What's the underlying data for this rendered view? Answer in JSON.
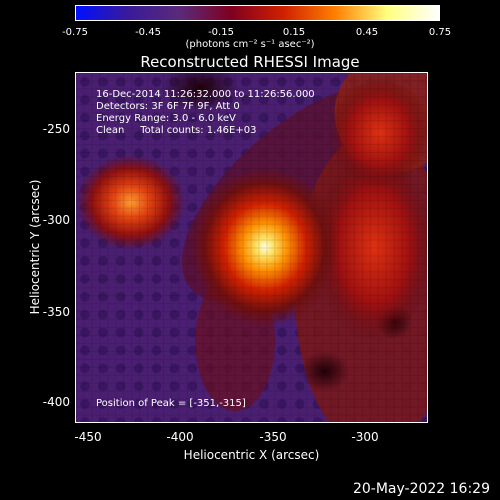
{
  "colorbar": {
    "ticks": [
      "-0.75",
      "-0.45",
      "-0.15",
      "0.15",
      "0.45",
      "0.75"
    ],
    "units": "(photons cm⁻² s⁻¹ asec⁻²)",
    "gradient": [
      "#0010ff",
      "#3a1a9a",
      "#5a2a7a",
      "#800020",
      "#d02000",
      "#ff8000",
      "#ffff80",
      "#ffffff"
    ]
  },
  "title": "Reconstructed RHESSI Image",
  "info": {
    "line1": "16-Dec-2014 11:26:32.000 to 11:26:56.000",
    "line2": "Detectors: 3F 6F 7F 9F, Att 0",
    "line3": "Energy Range: 3.0 - 6.0 keV",
    "line4": "Clean     Total counts: 1.46E+03",
    "peak": "Position of Peak = [-351,-315]"
  },
  "axes": {
    "xlabel": "Heliocentric X (arcsec)",
    "ylabel": "Heliocentric Y (arcsec)",
    "xticks": [
      "-450",
      "-400",
      "-350",
      "-300"
    ],
    "yticks": [
      "-250",
      "-300",
      "-350",
      "-400"
    ]
  },
  "footer": {
    "date": "20-May-2022 16:29"
  }
}
